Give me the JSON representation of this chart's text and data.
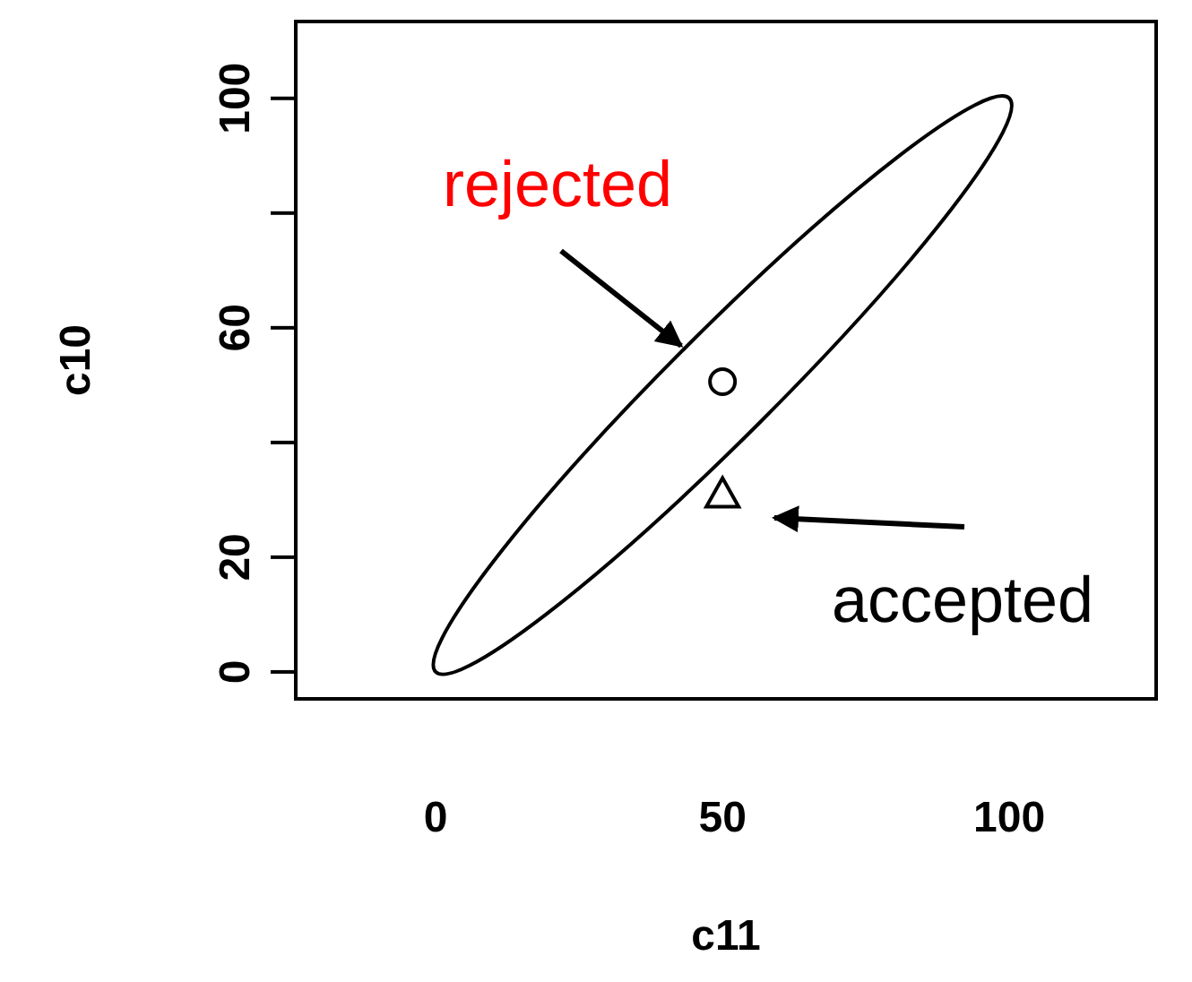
{
  "chart_data": {
    "type": "scatter",
    "xlabel": "c11",
    "ylabel": "c10",
    "xlim": [
      -24.4,
      125.6
    ],
    "ylim": [
      -4.7,
      113.4
    ],
    "xticks": [
      0,
      50,
      100
    ],
    "yticks": [
      0,
      20,
      {
        "value": 40,
        "label": null
      },
      60,
      {
        "value": 80,
        "label": null
      },
      100
    ],
    "series": [
      {
        "color": "#000000",
        "marker": "circle",
        "x": [
          50
        ],
        "values": [
          50.6
        ]
      },
      {
        "color": "#000000",
        "marker": "triangle",
        "x": [
          50
        ],
        "values": [
          31
        ]
      }
    ],
    "annotations": [
      "rejected",
      "accepted"
    ]
  }
}
